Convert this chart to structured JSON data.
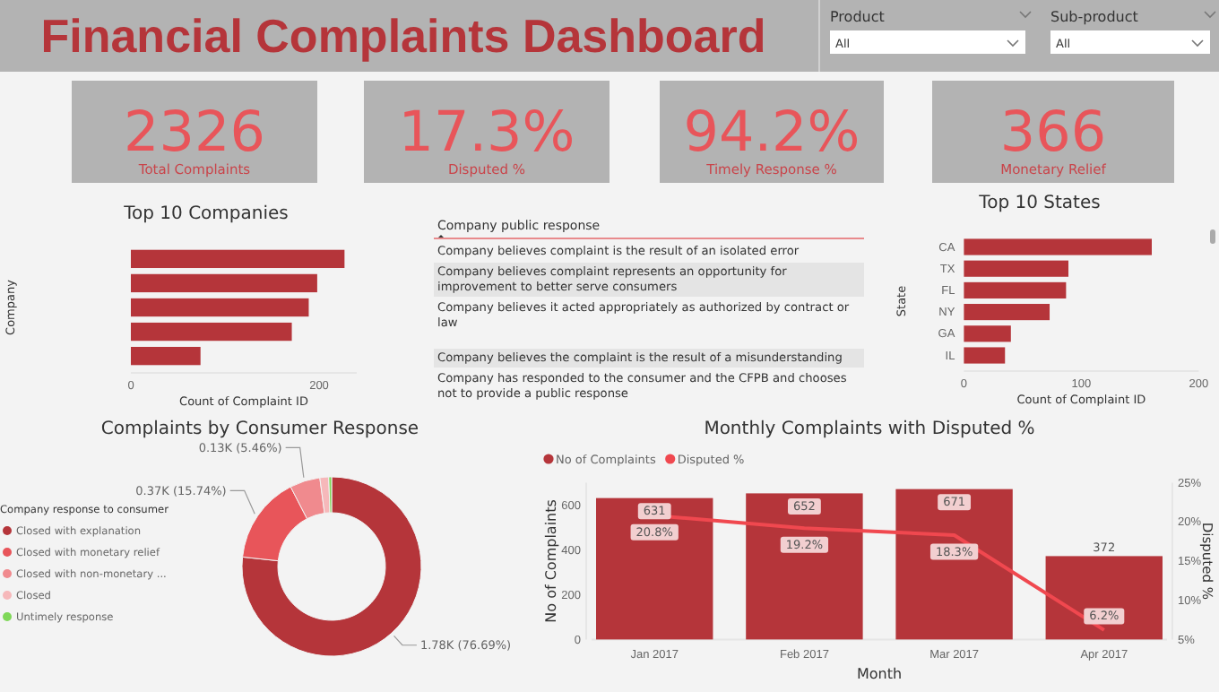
{
  "chart_data": [
    {
      "type": "other",
      "title": "Financial Complaints Dashboard",
      "annotations": [
        "Product",
        "All",
        "Sub-product",
        "All",
        "2326",
        "Total Complaints",
        "17.3%",
        "Disputed %",
        "94.2%",
        "Timely Response %",
        "366",
        "Monetary Relief"
      ]
    },
    {
      "type": "bar",
      "title": "Top 10 Companies",
      "orientation": "horizontal",
      "categories": [
        null,
        null,
        null,
        null,
        null
      ],
      "values": [
        227,
        198,
        189,
        171,
        74
      ],
      "color": "#b5353a",
      "xlim": [
        0,
        240
      ],
      "xticks": [
        0,
        200
      ],
      "xlabel": "Count of Complaint ID",
      "ylabel": "Company"
    },
    {
      "type": "other",
      "title": "Company public response",
      "annotations": [
        "Company believes complaint is the result of an isolated error",
        "Company believes complaint represents an opportunity for improvement to better serve consumers",
        "Company believes it acted appropriately as authorized by contract or law",
        "Company believes the complaint is the result of a misunderstanding",
        "Company has responded to the consumer and the CFPB and chooses not to provide a public response"
      ]
    },
    {
      "type": "bar",
      "title": "Top 10 States",
      "orientation": "horizontal",
      "categories": [
        "CA",
        "TX",
        "FL",
        "NY",
        "GA",
        "IL"
      ],
      "values": [
        160,
        89,
        87,
        73,
        40,
        35
      ],
      "color": "#b5353a",
      "xlim": [
        0,
        200
      ],
      "xticks": [
        0,
        100,
        200
      ],
      "xlabel": "Count of Complaint ID",
      "ylabel": "State"
    },
    {
      "type": "donut",
      "title": "Complaints by Consumer Response",
      "legend_title": "Company response to consumer",
      "legend": "left",
      "categories": [
        "Closed with explanation",
        "Closed with monetary relief",
        "Closed with non-monetary ...",
        "Closed",
        "Untimely response"
      ],
      "values": [
        76.69,
        15.74,
        5.46,
        1.6,
        0.51
      ],
      "colors": [
        "#b5353a",
        "#e8555a",
        "#f08a8e",
        "#f6b8ba",
        "#7fd858"
      ],
      "value_labels": [
        "1.78K (76.69%)",
        "0.37K (15.74%)",
        "0.13K (5.46%)",
        null,
        null
      ]
    },
    {
      "type": "bar",
      "title": "Monthly Complaints with Disputed %",
      "categories": [
        "Jan 2017",
        "Feb 2017",
        "Mar 2017",
        "Apr 2017"
      ],
      "xlabel": "Month",
      "ylabel": "No of Complaints",
      "y2label": "Disputed %",
      "legend": "top left",
      "ylim": [
        0,
        700
      ],
      "yticks": [
        0,
        200,
        400,
        600
      ],
      "y2lim": [
        5,
        25
      ],
      "y2ticks": [
        {
          "value": 5,
          "label": "5%"
        },
        {
          "value": 10,
          "label": "10%"
        },
        {
          "value": 15,
          "label": "15%"
        },
        {
          "value": 20,
          "label": "20%"
        },
        {
          "value": 25,
          "label": "25%"
        }
      ],
      "marker": "none",
      "series": [
        {
          "name": "No of Complaints",
          "type": "bar",
          "color": "#b5353a",
          "values": [
            631,
            652,
            671,
            372
          ],
          "value_labels": [
            "631",
            "652",
            "671",
            "372"
          ]
        },
        {
          "name": "Disputed %",
          "type": "line",
          "axis": "y2",
          "color": "#f0484f",
          "values": [
            20.8,
            19.2,
            18.3,
            6.2
          ],
          "value_labels": [
            "20.8%",
            "19.2%",
            "18.3%",
            "6.2%"
          ]
        }
      ]
    }
  ]
}
